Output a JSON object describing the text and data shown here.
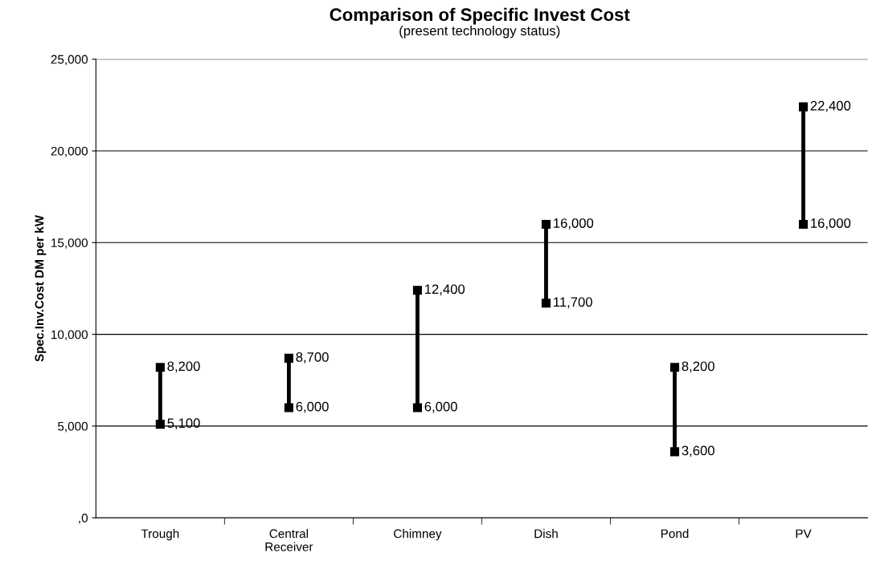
{
  "chart_data": {
    "type": "line",
    "title": "Comparison of Specific Invest Cost",
    "subtitle": "(present technology status)",
    "ylabel": "Spec.Inv.Cost DM per kW",
    "categories": [
      "Trough",
      "Central\nReceiver",
      "Chimney",
      "Dish",
      "Pond",
      "PV"
    ],
    "series": [
      {
        "color": "#000000",
        "x": [
          "Trough",
          "Trough"
        ],
        "values": [
          5100,
          8200
        ],
        "value_labels": [
          "5,100",
          "8,200"
        ]
      },
      {
        "color": "#000000",
        "x": [
          "Central\nReceiver",
          "Central\nReceiver"
        ],
        "values": [
          6000,
          8700
        ],
        "value_labels": [
          "6,000",
          "8,700"
        ]
      },
      {
        "color": "#000000",
        "x": [
          "Chimney",
          "Chimney"
        ],
        "values": [
          6000,
          12400
        ],
        "value_labels": [
          "6,000",
          "12,400"
        ]
      },
      {
        "color": "#000000",
        "x": [
          "Dish",
          "Dish"
        ],
        "values": [
          11700,
          16000
        ],
        "value_labels": [
          "11,700",
          "16,000"
        ]
      },
      {
        "color": "#000000",
        "x": [
          "Pond",
          "Pond"
        ],
        "values": [
          3600,
          8200
        ],
        "value_labels": [
          "3,600",
          "8,200"
        ]
      },
      {
        "color": "#000000",
        "x": [
          "PV",
          "PV"
        ],
        "values": [
          16000,
          22400
        ],
        "value_labels": [
          "16,000",
          "22,400"
        ]
      }
    ],
    "ylim": [
      0,
      25000
    ],
    "yticks": [
      {
        "value": 0,
        "label": ",0"
      },
      {
        "value": 5000,
        "label": "5,000"
      },
      {
        "value": 10000,
        "label": "10,000"
      },
      {
        "value": 15000,
        "label": "15,000"
      },
      {
        "value": 20000,
        "label": "20,000"
      },
      {
        "value": 25000,
        "label": "25,000"
      }
    ],
    "marker": "square",
    "line_style": "solid",
    "grid": "y",
    "legend": false
  }
}
